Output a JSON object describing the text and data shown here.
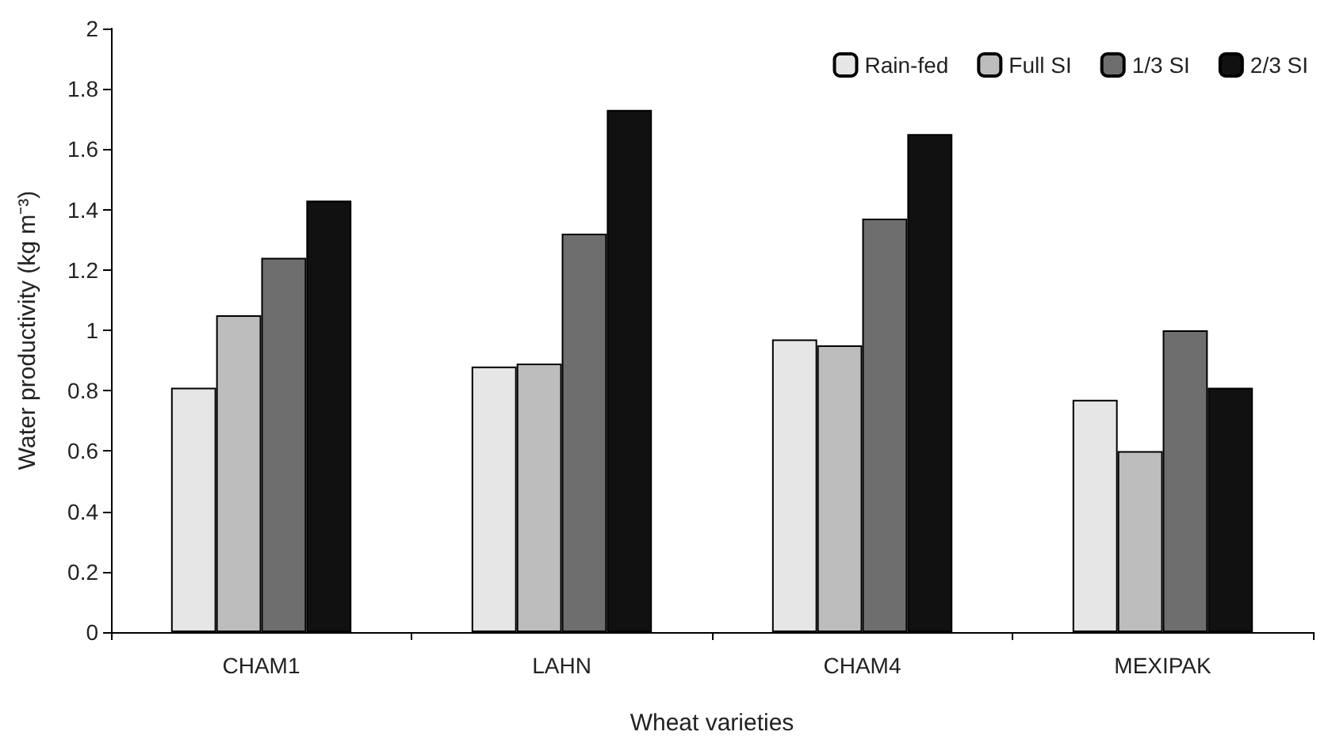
{
  "chart_data": {
    "type": "bar",
    "xlabel": "Wheat varieties",
    "ylabel": "Water productivity (kg m⁻³)",
    "categories": [
      "CHAM1",
      "LAHN",
      "CHAM4",
      "MEXIPAK"
    ],
    "series": [
      {
        "name": "Rain-fed",
        "color": "#e6e6e6",
        "values": [
          0.81,
          0.88,
          0.97,
          0.77
        ]
      },
      {
        "name": "Full SI",
        "color": "#bdbdbd",
        "values": [
          1.05,
          0.89,
          0.95,
          0.6
        ]
      },
      {
        "name": "1/3 SI",
        "color": "#6e6e6e",
        "values": [
          1.24,
          1.32,
          1.37,
          1.0
        ]
      },
      {
        "name": "2/3 SI",
        "color": "#111111",
        "values": [
          1.43,
          1.73,
          1.65,
          0.81
        ]
      }
    ],
    "ylim": [
      0,
      2
    ],
    "yticks": [
      0,
      0.2,
      0.4,
      0.6,
      0.8,
      1,
      1.2,
      1.4,
      1.6,
      1.8,
      2
    ],
    "grid": false,
    "legend": "top right"
  }
}
